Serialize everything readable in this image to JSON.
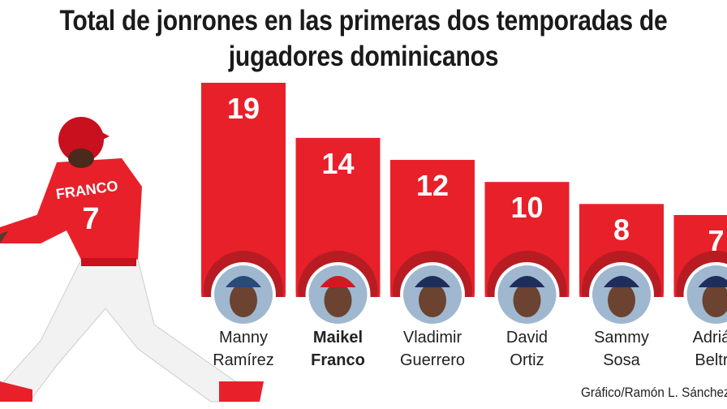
{
  "chart_data": {
    "type": "bar",
    "title": "Total de jonrones en las primeras dos temporadas de jugadores dominicanos",
    "title_lines": [
      "Total de jonrones en las primeras dos temporadas de",
      "jugadores dominicanos"
    ],
    "categories": [
      "Manny Ramírez",
      "Maikel Franco",
      "Vladimir Guerrero",
      "David Ortiz",
      "Sammy Sosa",
      "Adrián Beltré"
    ],
    "category_lines": [
      [
        "Manny",
        "Ramírez"
      ],
      [
        "Maikel",
        "Franco"
      ],
      [
        "Vladimir",
        "Guerrero"
      ],
      [
        "David",
        "Ortiz"
      ],
      [
        "Sammy",
        "Sosa"
      ],
      [
        "Adrián",
        "Beltré"
      ]
    ],
    "highlighted": "Maikel Franco",
    "values": [
      19,
      14,
      12,
      10,
      8,
      7
    ],
    "data_labels": [
      "19",
      "14",
      "12",
      "10",
      "8",
      "7"
    ],
    "ylim": [
      0,
      19
    ],
    "grid": false,
    "colors": {
      "bar": "#e8202a",
      "ring": "#b71c22",
      "text": "#222222"
    },
    "credit": "Gráfico/Ramón L. Sánchez",
    "player_jersey": {
      "name": "FRANCO",
      "number": "7"
    }
  }
}
